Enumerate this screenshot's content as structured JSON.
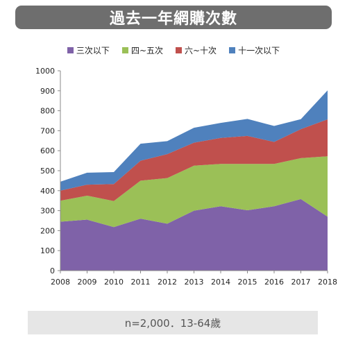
{
  "title": "過去一年網購次數",
  "footer_note": "n=2,000．13-64歲",
  "chart_data": {
    "type": "area",
    "stacked": true,
    "title": "過去一年網購次數",
    "xlabel": "",
    "ylabel": "",
    "x": [
      "2008",
      "2009",
      "2010",
      "2011",
      "2012",
      "2013",
      "2014",
      "2015",
      "2016",
      "2017",
      "2018"
    ],
    "ylim": [
      0,
      1000
    ],
    "yticks": [
      0,
      100,
      200,
      300,
      400,
      500,
      600,
      700,
      800,
      900,
      1000
    ],
    "grid": false,
    "legend_position": "top",
    "series": [
      {
        "name": "三次以下",
        "color": "#7f62a8",
        "values": [
          245,
          255,
          218,
          260,
          235,
          300,
          322,
          302,
          322,
          358,
          270
        ]
      },
      {
        "name": "四~五次",
        "color": "#9bc057",
        "values": [
          105,
          120,
          130,
          190,
          228,
          225,
          212,
          232,
          212,
          205,
          302
        ]
      },
      {
        "name": "六~十次",
        "color": "#c0504d",
        "values": [
          50,
          55,
          85,
          100,
          120,
          115,
          130,
          140,
          110,
          145,
          185
        ]
      },
      {
        "name": "十一次以下",
        "color": "#4f81bd",
        "values": [
          45,
          60,
          60,
          85,
          65,
          75,
          75,
          85,
          80,
          50,
          145
        ]
      }
    ]
  }
}
